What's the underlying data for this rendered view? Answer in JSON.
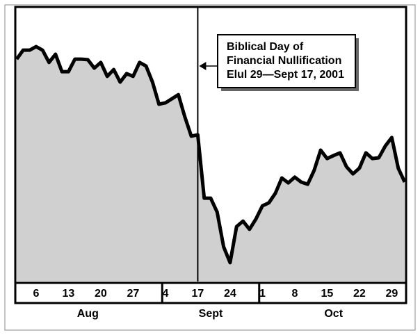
{
  "chart_data": {
    "type": "area",
    "categories": [
      null,
      null,
      null,
      "6",
      null,
      null,
      null,
      null,
      "13",
      null,
      null,
      null,
      null,
      "20",
      null,
      null,
      null,
      null,
      "27",
      null,
      null,
      null,
      null,
      "4",
      null,
      null,
      null,
      null,
      "17",
      null,
      null,
      null,
      null,
      "24",
      null,
      null,
      null,
      null,
      "1",
      null,
      null,
      null,
      null,
      "8",
      null,
      null,
      null,
      null,
      "15",
      null,
      null,
      null,
      null,
      "22",
      null,
      null,
      null,
      null,
      "29",
      null,
      null
    ],
    "values": [
      81.4,
      84.7,
      84.7,
      86.0,
      84.7,
      80.2,
      83.2,
      76.8,
      76.8,
      81.4,
      81.4,
      81.2,
      78.1,
      80.2,
      75.1,
      77.6,
      73.0,
      76.1,
      75.1,
      80.2,
      78.9,
      73.0,
      64.9,
      65.4,
      66.9,
      68.4,
      60.3,
      53.2,
      53.7,
      30.5,
      30.5,
      25.4,
      12.7,
      6.9,
      20.1,
      22.1,
      19.1,
      22.9,
      27.7,
      28.8,
      32.3,
      37.9,
      36.1,
      38.2,
      36.4,
      35.6,
      40.7,
      48.1,
      45.0,
      46.1,
      47.1,
      42.0,
      39.4,
      41.5,
      47.1,
      45.0,
      45.3,
      49.6,
      52.7,
      41.5,
      36.4
    ],
    "months": [
      "Aug",
      "Sept",
      "Oct"
    ],
    "ylim": [
      0,
      100
    ],
    "color": "#d0d0d0",
    "line_color": "#000000",
    "annotation": [
      "Biblical Day of",
      "Financial Nullification",
      "Elul 29—Sept 17, 2001"
    ]
  }
}
